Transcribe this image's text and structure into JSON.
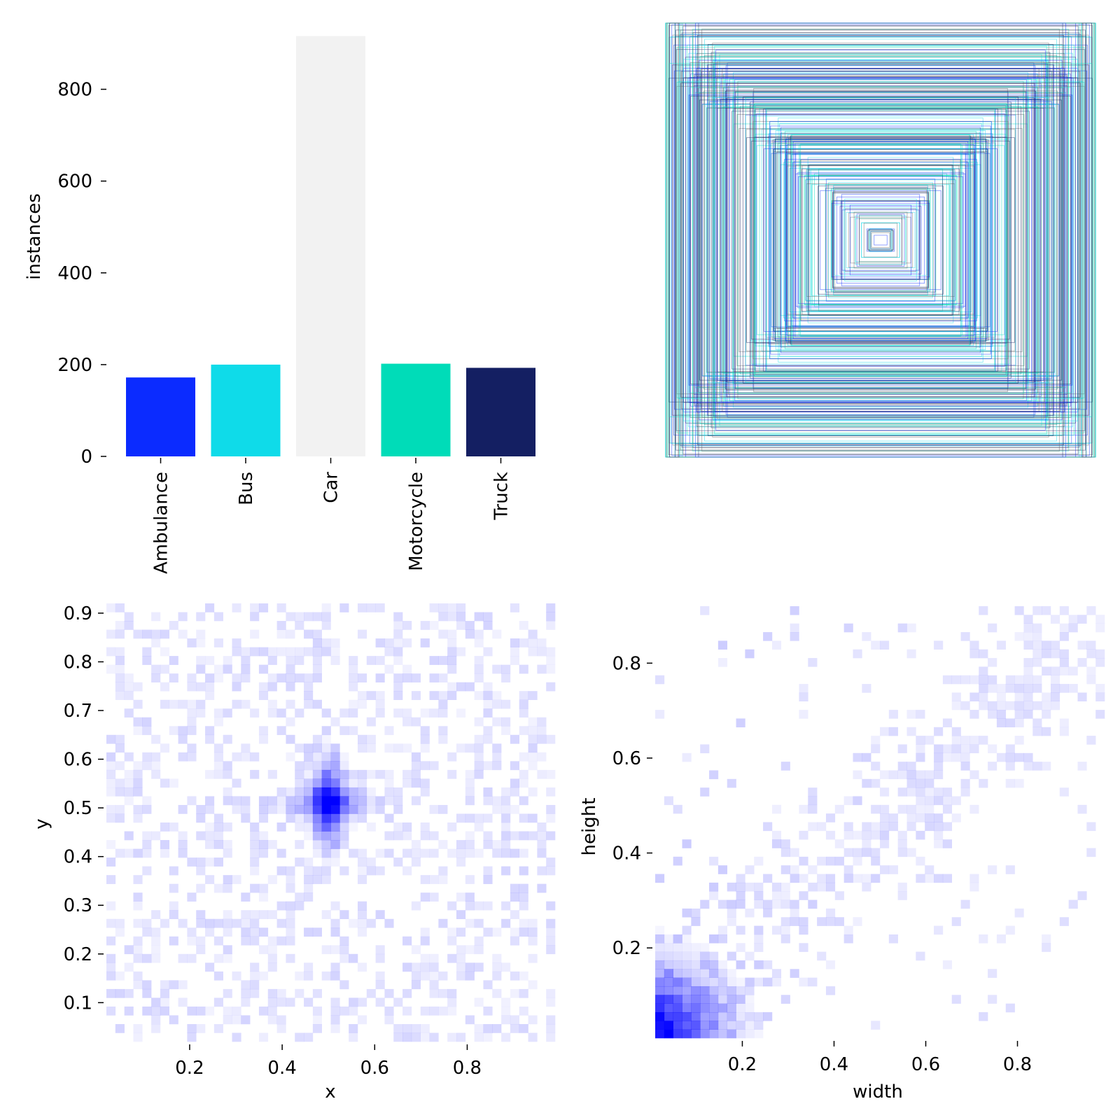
{
  "chart_data": [
    {
      "type": "bar",
      "ylabel": "instances",
      "yticks": [
        0,
        200,
        400,
        600,
        800
      ],
      "ylim": [
        0,
        950
      ],
      "categories": [
        "Ambulance",
        "Bus",
        "Car",
        "Motorcycle",
        "Truck"
      ],
      "values": [
        172,
        200,
        916,
        202,
        193
      ],
      "colors": [
        "#0b2bff",
        "#0fdbe9",
        "#f2f2f2",
        "#00dcb8",
        "#141f62"
      ],
      "grid": false
    },
    {
      "type": "scatter",
      "description_kind": "overlaid bounding boxes centered at (0.5,0.5)",
      "box_colors": [
        "#0b2bff",
        "#0fdbe9",
        "#141f62",
        "#00dcb8",
        "#666666"
      ]
    },
    {
      "type": "heatmap",
      "xlabel": "x",
      "ylabel": "y",
      "xticks": [
        0.2,
        0.4,
        0.6,
        0.8
      ],
      "yticks": [
        0.1,
        0.2,
        0.3,
        0.4,
        0.5,
        0.6,
        0.7,
        0.8,
        0.9
      ],
      "xlim": [
        0.02,
        0.99
      ],
      "ylim": [
        0.02,
        0.92
      ],
      "peak": [
        0.5,
        0.51
      ],
      "color": "#0000ff"
    },
    {
      "type": "heatmap",
      "xlabel": "width",
      "ylabel": "height",
      "xticks": [
        0.2,
        0.4,
        0.6,
        0.8
      ],
      "yticks": [
        0.2,
        0.4,
        0.6,
        0.8
      ],
      "xlim": [
        0.01,
        0.99
      ],
      "ylim": [
        0.01,
        0.92
      ],
      "peak": [
        0.05,
        0.05
      ],
      "color": "#0000ff"
    }
  ]
}
